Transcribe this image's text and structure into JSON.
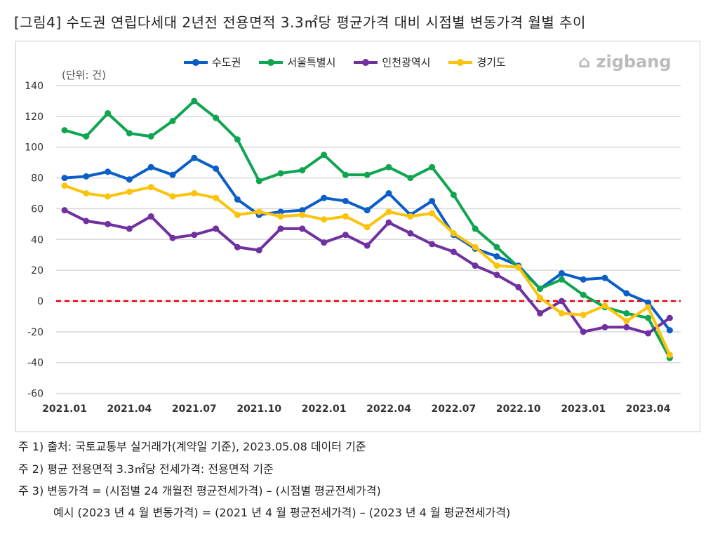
{
  "title": "[그림4] 수도권 연립다세대 2년전 전용면적 3.3㎡당 평균가격 대비 시점별 변동가격 월별 추이",
  "logo": "zigbang",
  "notes": [
    "주 1)  출처: 국토교통부 실거래가(계약일 기준), 2023.05.08 데이터 기준",
    "주 2)  평균 전용면적 3.3㎡당 전세가격: 전용면적 기준",
    "주 3)  변동가격  = (시점별 24 개월전  평균전세가격) – (시점별  평균전세가격)",
    "예시  (2023 년 4 월  변동가격) = (2021 년 4 월  평균전세가격) – (2023 년 4 월  평균전세가격)"
  ],
  "chart_data": {
    "type": "line",
    "unit_label": "(단위: 건)",
    "ylim": [
      -60,
      140
    ],
    "yticks": [
      140,
      120,
      100,
      80,
      60,
      40,
      20,
      0,
      -20,
      -40,
      -60
    ],
    "xtick_labels": [
      "2021.01",
      "2021.04",
      "2021.07",
      "2021.10",
      "2022.01",
      "2022.04",
      "2022.07",
      "2022.10",
      "2023.01",
      "2023.04"
    ],
    "x": [
      "2021.01",
      "2021.02",
      "2021.03",
      "2021.04",
      "2021.05",
      "2021.06",
      "2021.07",
      "2021.08",
      "2021.09",
      "2021.10",
      "2021.11",
      "2021.12",
      "2022.01",
      "2022.02",
      "2022.03",
      "2022.04",
      "2022.05",
      "2022.06",
      "2022.07",
      "2022.08",
      "2022.09",
      "2022.10",
      "2022.11",
      "2022.12",
      "2023.01",
      "2023.02",
      "2023.03",
      "2023.04",
      "2023.05"
    ],
    "grid": true,
    "reference_line": {
      "y": 0,
      "color": "#e00000",
      "style": "dashed"
    },
    "legend_position": "top",
    "series": [
      {
        "name": "수도권",
        "color": "#0a5ec8",
        "values": [
          80,
          81,
          84,
          79,
          87,
          82,
          93,
          86,
          66,
          56,
          58,
          59,
          67,
          65,
          59,
          70,
          56,
          65,
          43,
          34,
          29,
          23,
          8,
          18,
          14,
          15,
          5,
          -1,
          -19
        ]
      },
      {
        "name": "서울특별시",
        "color": "#10a550",
        "values": [
          111,
          107,
          122,
          109,
          107,
          117,
          130,
          119,
          105,
          78,
          83,
          85,
          95,
          82,
          82,
          87,
          80,
          87,
          69,
          47,
          35,
          22,
          8,
          14,
          4,
          -4,
          -8,
          -11,
          -37
        ]
      },
      {
        "name": "인천광역시",
        "color": "#7030a0",
        "values": [
          59,
          52,
          50,
          47,
          55,
          41,
          43,
          47,
          35,
          33,
          47,
          47,
          38,
          43,
          36,
          51,
          44,
          37,
          32,
          23,
          17,
          9,
          -8,
          0,
          -20,
          -17,
          -17,
          -21,
          -11
        ]
      },
      {
        "name": "경기도",
        "color": "#fbc30a",
        "values": [
          75,
          70,
          68,
          71,
          74,
          68,
          70,
          67,
          56,
          58,
          55,
          56,
          53,
          55,
          48,
          58,
          55,
          57,
          44,
          35,
          23,
          22,
          2,
          -8,
          -9,
          -3,
          -13,
          -4,
          -35
        ]
      }
    ]
  }
}
